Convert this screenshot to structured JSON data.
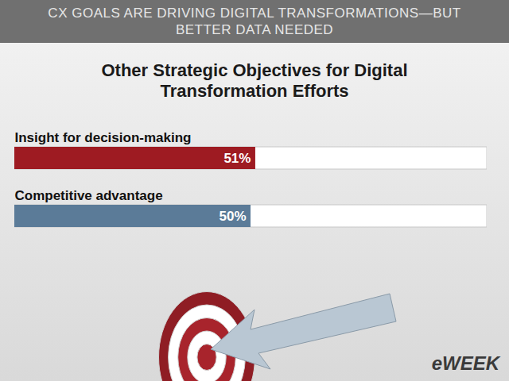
{
  "chart_data": {
    "type": "bar",
    "orientation": "horizontal",
    "subtitle": "CX GOALS ARE DRIVING DIGITAL TRANSFORMATIONS—BUT BETTER DATA NEEDED",
    "title": "Other Strategic Objectives for Digital Transformation Efforts",
    "categories": [
      "Insight for decision-making",
      "Competitive advantage"
    ],
    "values": [
      51,
      50
    ],
    "value_labels": [
      "51%",
      "50%"
    ],
    "colors": [
      "#9e1b22",
      "#5b7b98"
    ],
    "xlim": [
      0,
      100
    ],
    "xticks": [],
    "data_labels": true,
    "tick_labels": false,
    "grid": false,
    "annotations": [
      "eWEEK"
    ]
  }
}
